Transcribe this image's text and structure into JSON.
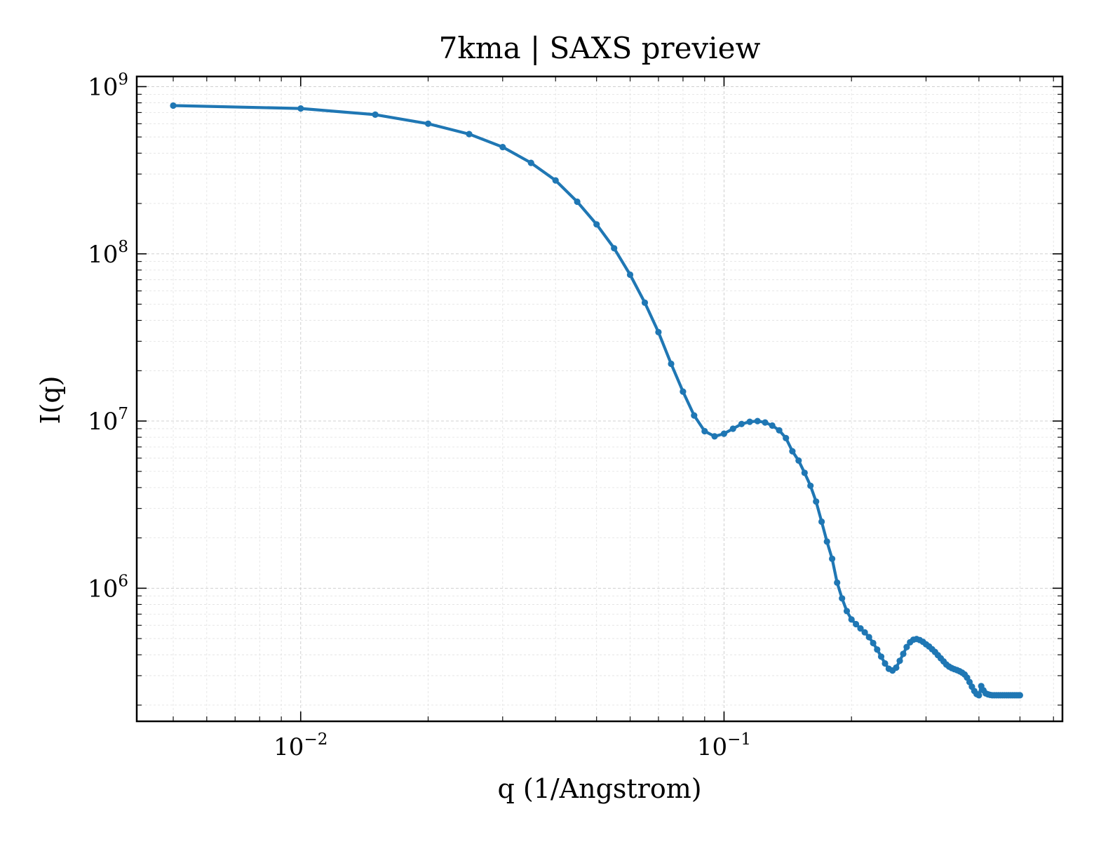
{
  "chart_data": {
    "type": "line",
    "title": "7kma | SAXS preview",
    "xlabel": "q (1/Angstrom)",
    "ylabel": "I(q)",
    "xscale": "log",
    "yscale": "log",
    "xlim": [
      0.0041,
      0.63
    ],
    "ylim": [
      160000,
      1150000000
    ],
    "grid": true,
    "x_ticks": [
      {
        "value": 0.01,
        "base": "10",
        "exp": "−2"
      },
      {
        "value": 0.1,
        "base": "10",
        "exp": "−1"
      }
    ],
    "y_ticks": [
      {
        "value": 1000000,
        "base": "10",
        "exp": "6"
      },
      {
        "value": 10000000,
        "base": "10",
        "exp": "7"
      },
      {
        "value": 100000000,
        "base": "10",
        "exp": "8"
      },
      {
        "value": 1000000000,
        "base": "10",
        "exp": "9"
      }
    ],
    "colors": {
      "series": "#1f77b4"
    },
    "series": [
      {
        "marker": "circle",
        "x": [
          0.005,
          0.01,
          0.015,
          0.02,
          0.025,
          0.03,
          0.035,
          0.04,
          0.045,
          0.05,
          0.055,
          0.06,
          0.065,
          0.07,
          0.075,
          0.08,
          0.085,
          0.09,
          0.095,
          0.1,
          0.105,
          0.11,
          0.115,
          0.12,
          0.125,
          0.13,
          0.135,
          0.14,
          0.145,
          0.15,
          0.155,
          0.16,
          0.165,
          0.17,
          0.175,
          0.18,
          0.185,
          0.19,
          0.195,
          0.2,
          0.205,
          0.21,
          0.215,
          0.22,
          0.225,
          0.23,
          0.235,
          0.24,
          0.245,
          0.25,
          0.255,
          0.26,
          0.265,
          0.27,
          0.275,
          0.28,
          0.285,
          0.29,
          0.295,
          0.3,
          0.305,
          0.31,
          0.315,
          0.32,
          0.325,
          0.33,
          0.335,
          0.34,
          0.345,
          0.35,
          0.355,
          0.36,
          0.365,
          0.37,
          0.375,
          0.38,
          0.385,
          0.39,
          0.395,
          0.4,
          0.405,
          0.41,
          0.415,
          0.42,
          0.425,
          0.43,
          0.435,
          0.44,
          0.445,
          0.45,
          0.455,
          0.46,
          0.465,
          0.47,
          0.475,
          0.48,
          0.485,
          0.49,
          0.495,
          0.5
        ],
        "y": [
          770000000,
          740000000,
          680000000,
          600000000,
          520000000,
          435000000,
          350000000,
          275000000,
          205000000,
          150000000,
          108000000,
          75000000,
          51000000,
          34000000,
          22000000,
          15000000,
          10800000,
          8700000,
          8100000,
          8400000,
          9000000,
          9600000,
          9900000,
          10000000,
          9800000,
          9400000,
          8800000,
          7900000,
          6600000,
          5800000,
          4900000,
          4100000,
          3300000,
          2500000,
          1900000,
          1500000,
          1080000,
          870000,
          730000,
          650000,
          610000,
          575000,
          545000,
          510000,
          470000,
          430000,
          390000,
          355000,
          330000,
          322000,
          335000,
          368000,
          405000,
          445000,
          475000,
          492000,
          497000,
          490000,
          478000,
          462000,
          448000,
          432000,
          416000,
          398000,
          381000,
          365000,
          350000,
          340000,
          333000,
          328000,
          324000,
          319000,
          313000,
          305000,
          292000,
          275000,
          258000,
          243000,
          233000,
          229000,
          260000,
          245000,
          235000,
          232000,
          230000,
          229000,
          229000,
          229000,
          229000,
          229000,
          229000,
          229000,
          229000,
          229000,
          229000,
          229000,
          229000,
          229000,
          229000,
          229000
        ]
      }
    ]
  }
}
